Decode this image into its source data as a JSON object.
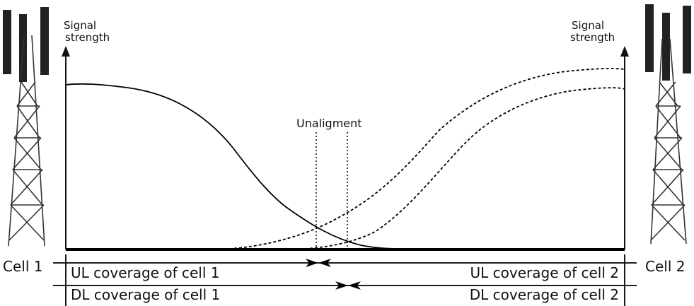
{
  "left_axis_label": [
    "Signal",
    "strength"
  ],
  "right_axis_label": [
    "Signal",
    "strength"
  ],
  "unalignment_label": "Unaligment",
  "cells": {
    "left": "Cell 1",
    "right": "Cell 2"
  },
  "coverage": {
    "ul_cell1": "UL coverage of cell 1",
    "ul_cell2": "UL coverage of cell 2",
    "dl_cell1": "DL coverage of cell 1",
    "dl_cell2": "DL coverage of cell 2"
  },
  "curves": {
    "cell1_signal": "solid",
    "cell2_signal_upper": "dashed",
    "cell2_signal_lower": "dashed"
  },
  "icons": [
    "cell-tower-left-icon",
    "cell-tower-right-icon"
  ]
}
